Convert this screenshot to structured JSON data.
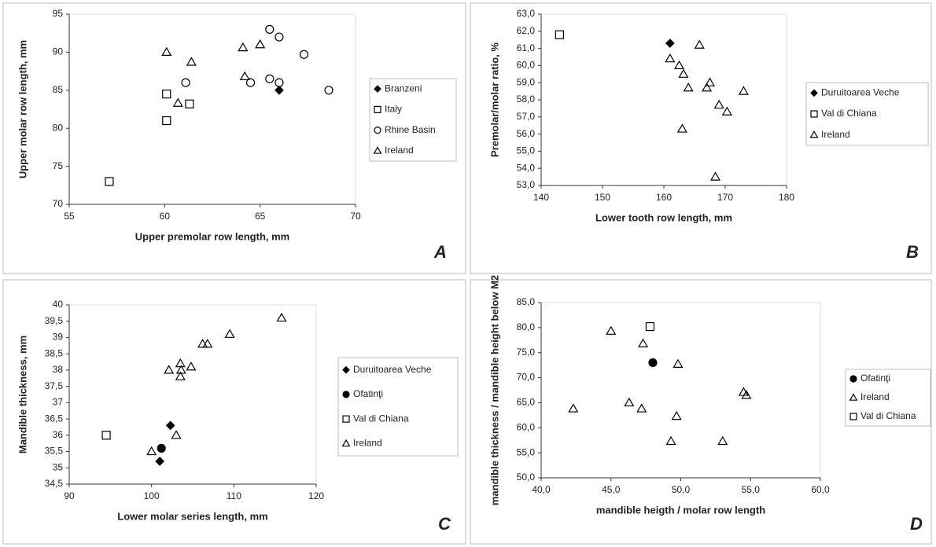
{
  "chart_data": [
    {
      "type": "scatter",
      "panel_label": "A",
      "x_label": "Upper premolar row length, mm",
      "y_label": "Upper molar row length, mm",
      "xlim": [
        55,
        70
      ],
      "xticks": [
        55,
        60,
        65,
        70
      ],
      "ylim": [
        70,
        95
      ],
      "yticks": [
        70,
        75,
        80,
        85,
        90,
        95
      ],
      "series": [
        {
          "name": "Branzeni",
          "marker": "diamond",
          "filled": true,
          "color": "#000000",
          "x": [
            66.0
          ],
          "values": [
            85.0
          ]
        },
        {
          "name": "Italy",
          "marker": "square",
          "filled": false,
          "color": "#000000",
          "x": [
            57.1,
            60.1,
            60.1,
            61.3
          ],
          "values": [
            73.0,
            81.0,
            84.5,
            83.2
          ]
        },
        {
          "name": "Rhine Basin",
          "marker": "circle",
          "filled": false,
          "color": "#000000",
          "x": [
            61.1,
            64.5,
            65.5,
            66.0,
            65.5,
            66.0,
            67.3,
            68.6
          ],
          "values": [
            86.0,
            86.0,
            93.0,
            92.0,
            86.5,
            86.0,
            89.7,
            85.0
          ]
        },
        {
          "name": "Ireland",
          "marker": "triangle",
          "filled": false,
          "color": "#000000",
          "x": [
            60.1,
            61.4,
            60.7,
            64.1,
            64.2,
            65.0
          ],
          "values": [
            90.0,
            88.7,
            83.3,
            90.6,
            86.8,
            91.0
          ]
        }
      ]
    },
    {
      "type": "scatter",
      "panel_label": "B",
      "x_label": "Lower tooth row length, mm",
      "y_label": "Premolar/molar ratio, %",
      "xlim": [
        140,
        180
      ],
      "xticks": [
        140,
        150,
        160,
        170,
        180
      ],
      "ylim": [
        53,
        63
      ],
      "yticks": [
        {
          "value": 53,
          "label": "53,0"
        },
        {
          "value": 54,
          "label": "54,0"
        },
        {
          "value": 55,
          "label": "55,0"
        },
        {
          "value": 56,
          "label": "56,0"
        },
        {
          "value": 57,
          "label": "57,0"
        },
        {
          "value": 58,
          "label": "58,0"
        },
        {
          "value": 59,
          "label": "59,0"
        },
        {
          "value": 60,
          "label": "60,0"
        },
        {
          "value": 61,
          "label": "61,0"
        },
        {
          "value": 62,
          "label": "62,0"
        },
        {
          "value": 63,
          "label": "63,0"
        }
      ],
      "series": [
        {
          "name": "Duruitoarea Veche",
          "marker": "diamond",
          "filled": true,
          "color": "#000000",
          "x": [
            161.0
          ],
          "values": [
            61.3
          ]
        },
        {
          "name": "Val di Chiana",
          "marker": "square",
          "filled": false,
          "color": "#000000",
          "x": [
            143.0
          ],
          "values": [
            61.8
          ]
        },
        {
          "name": "Ireland",
          "marker": "triangle",
          "filled": false,
          "color": "#000000",
          "x": [
            161.0,
            162.5,
            163.2,
            164.0,
            165.8,
            167.0,
            167.5,
            169.0,
            170.3,
            173.0,
            163.0,
            168.4
          ],
          "values": [
            60.4,
            60.0,
            59.5,
            58.7,
            61.2,
            58.7,
            59.0,
            57.7,
            57.3,
            58.5,
            56.3,
            53.5
          ]
        }
      ]
    },
    {
      "type": "scatter",
      "panel_label": "C",
      "x_label": "Lower molar series length, mm",
      "y_label": "Mandible thickness, mm",
      "xlim": [
        90,
        120
      ],
      "xticks": [
        90,
        100,
        110,
        120
      ],
      "ylim": [
        34.5,
        40
      ],
      "yticks": [
        {
          "value": 34.5,
          "label": "34,5"
        },
        35,
        {
          "value": 35.5,
          "label": "35,5"
        },
        36,
        {
          "value": 36.5,
          "label": "36,5"
        },
        37,
        {
          "value": 37.5,
          "label": "37,5"
        },
        38,
        {
          "value": 38.5,
          "label": "38,5"
        },
        39,
        {
          "value": 39.5,
          "label": "39,5"
        },
        40
      ],
      "series": [
        {
          "name": "Duruitoarea Veche",
          "marker": "diamond",
          "filled": true,
          "color": "#000000",
          "x": [
            102.3,
            101.0
          ],
          "values": [
            36.3,
            35.2
          ]
        },
        {
          "name": "Ofatinţi",
          "marker": "circle",
          "filled": true,
          "color": "#000000",
          "x": [
            101.2
          ],
          "values": [
            35.6
          ]
        },
        {
          "name": "Val di Chiana",
          "marker": "square",
          "filled": false,
          "color": "#000000",
          "x": [
            94.5
          ],
          "values": [
            36.0
          ]
        },
        {
          "name": "Ireland",
          "marker": "triangle",
          "filled": false,
          "color": "#000000",
          "x": [
            100.0,
            103.0,
            102.1,
            103.5,
            103.5,
            104.8,
            106.2,
            106.8,
            109.5,
            115.8,
            103.6
          ],
          "values": [
            35.5,
            36.0,
            38.0,
            38.2,
            37.8,
            38.1,
            38.8,
            38.8,
            39.1,
            39.6,
            38.0
          ]
        }
      ]
    },
    {
      "type": "scatter",
      "panel_label": "D",
      "x_label": "mandible heigth / molar row length",
      "y_label": "mandible thickness / mandible height below M2",
      "xlim": [
        40,
        60
      ],
      "xticks": [
        {
          "value": 40,
          "label": "40,0"
        },
        {
          "value": 45,
          "label": "45,0"
        },
        {
          "value": 50,
          "label": "50,0"
        },
        {
          "value": 55,
          "label": "55,0"
        },
        {
          "value": 60,
          "label": "60,0"
        }
      ],
      "ylim": [
        50,
        85
      ],
      "yticks": [
        {
          "value": 50,
          "label": "50,0"
        },
        {
          "value": 55,
          "label": "55,0"
        },
        {
          "value": 60,
          "label": "60,0"
        },
        {
          "value": 65,
          "label": "65,0"
        },
        {
          "value": 70,
          "label": "70,0"
        },
        {
          "value": 75,
          "label": "75,0"
        },
        {
          "value": 80,
          "label": "80,0"
        },
        {
          "value": 85,
          "label": "85,0"
        }
      ],
      "series": [
        {
          "name": "Ofatinţi",
          "marker": "circle",
          "filled": true,
          "color": "#000000",
          "x": [
            48.0
          ],
          "values": [
            73.0
          ]
        },
        {
          "name": "Ireland",
          "marker": "triangle",
          "filled": false,
          "color": "#000000",
          "x": [
            45.0,
            47.3,
            42.3,
            46.3,
            47.2,
            49.8,
            49.7,
            49.3,
            53.0,
            54.5,
            54.7
          ],
          "values": [
            79.3,
            76.8,
            63.8,
            65.0,
            63.8,
            72.7,
            62.3,
            57.3,
            57.3,
            67.1,
            66.5
          ]
        },
        {
          "name": "Val di Chiana",
          "marker": "square",
          "filled": false,
          "color": "#000000",
          "x": [
            47.8
          ],
          "values": [
            80.2
          ]
        }
      ]
    }
  ]
}
